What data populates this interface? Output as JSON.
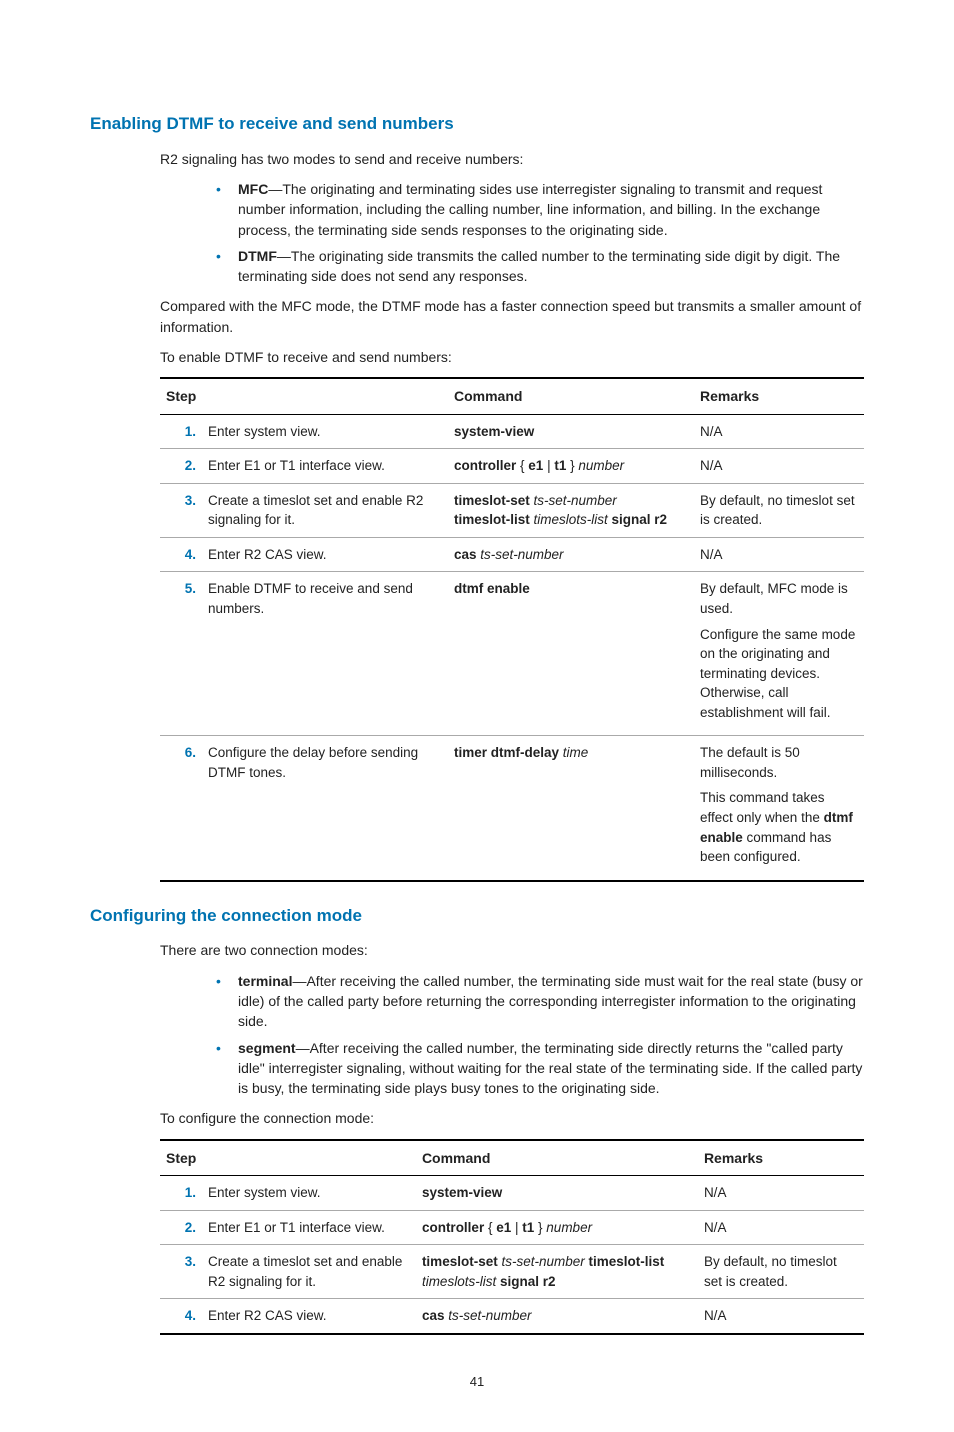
{
  "section1": {
    "heading": "Enabling DTMF to receive and send numbers",
    "intro": "R2 signaling has two modes to send and receive numbers:",
    "bullets": [
      {
        "strong": "MFC",
        "text": "—The originating and terminating sides use interregister signaling to transmit and request number information, including the calling number, line information, and billing. In the exchange process, the terminating side sends responses to the originating side."
      },
      {
        "strong": "DTMF",
        "text": "—The originating side transmits the called number to the terminating side digit by digit. The terminating side does not send any responses."
      }
    ],
    "para2": "Compared with the MFC mode, the DTMF mode has a faster connection speed but transmits a smaller amount of information.",
    "para3": "To enable DTMF to receive and send numbers:"
  },
  "table1": {
    "headers": {
      "step": "Step",
      "command": "Command",
      "remarks": "Remarks"
    },
    "rows": [
      {
        "num": "1.",
        "step": "Enter system view.",
        "cmd_b1": "system-view",
        "remarks": "N/A"
      },
      {
        "num": "2.",
        "step": "Enter E1 or T1 interface view.",
        "cmd_b1": "controller",
        "cmd_mid": " { ",
        "cmd_b2": "e1",
        "cmd_mid2": " | ",
        "cmd_b3": "t1",
        "cmd_mid3": " } ",
        "cmd_i1": "number",
        "remarks": "N/A"
      },
      {
        "num": "3.",
        "step": "Create a timeslot set and enable R2 signaling for it.",
        "line1_b1": "timeslot-set",
        "line1_i1": " ts-set-number",
        "line2_b1": "timeslot-list",
        "line2_i1": " timeslots-list",
        "line2_b2": " signal r2",
        "remarks": "By default, no timeslot set is created."
      },
      {
        "num": "4.",
        "step": "Enter R2 CAS view.",
        "cmd_b1": "cas",
        "cmd_i1": " ts-set-number",
        "remarks": "N/A"
      },
      {
        "num": "5.",
        "step": "Enable DTMF to receive and send numbers.",
        "cmd_b1": "dtmf enable",
        "remarks_p1": "By default, MFC mode is used.",
        "remarks_p2": "Configure the same mode on the originating and terminating devices. Otherwise, call establishment will fail."
      },
      {
        "num": "6.",
        "step": "Configure the delay before sending DTMF tones.",
        "cmd_b1": "timer dtmf-delay",
        "cmd_i1": " time",
        "remarks_p1": "The default is 50 milliseconds.",
        "remarks_p2a": "This command takes effect only when the ",
        "remarks_p2b": "dtmf enable",
        "remarks_p2c": " command has been configured."
      }
    ]
  },
  "section2": {
    "heading": "Configuring the connection mode",
    "intro": "There are two connection modes:",
    "bullets": [
      {
        "strong": "terminal",
        "text": "—After receiving the called number, the terminating side must wait for the real state (busy or idle) of the called party before returning the corresponding interregister information to the originating side."
      },
      {
        "strong": "segment",
        "text": "—After receiving the called number, the terminating side directly returns the \"called party idle\" interregister signaling, without waiting for the real state of the terminating side. If the called party is busy, the terminating side plays busy tones to the originating side."
      }
    ],
    "para2": "To configure the connection mode:"
  },
  "table2": {
    "headers": {
      "step": "Step",
      "command": "Command",
      "remarks": "Remarks"
    },
    "rows": [
      {
        "num": "1.",
        "step": "Enter system view.",
        "cmd_b1": "system-view",
        "remarks": "N/A"
      },
      {
        "num": "2.",
        "step": "Enter E1 or T1 interface view.",
        "cmd_b1": "controller",
        "cmd_mid": " { ",
        "cmd_b2": "e1",
        "cmd_mid2": " | ",
        "cmd_b3": "t1",
        "cmd_mid3": " } ",
        "cmd_i1": "number",
        "remarks": "N/A"
      },
      {
        "num": "3.",
        "step": "Create a timeslot set and enable R2 signaling for it.",
        "cmd_b1": "timeslot-set",
        "cmd_i1": " ts-set-number",
        "cmd_b2": " timeslot-list",
        "cmd_i2_line2": "timeslots-list",
        "cmd_b3_line2": " signal r2",
        "remarks": "By default, no timeslot set is created."
      },
      {
        "num": "4.",
        "step": "Enter R2 CAS view.",
        "cmd_b1": "cas",
        "cmd_i1": " ts-set-number",
        "remarks": "N/A"
      }
    ]
  },
  "page_number": "41"
}
